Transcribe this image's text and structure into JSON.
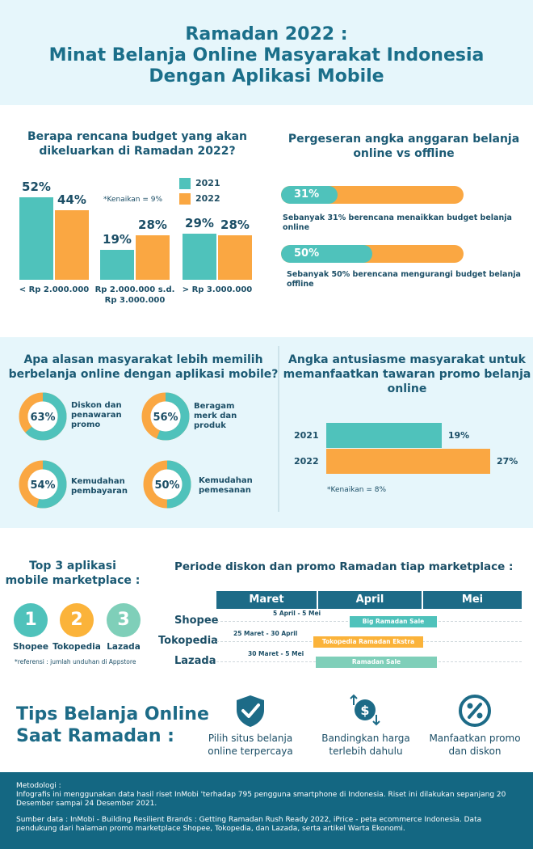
{
  "title": {
    "line1": "Ramadan 2022 :",
    "line2": "Minat Belanja Online Masyarakat Indonesia",
    "line3": "Dengan Aplikasi Mobile"
  },
  "colors": {
    "y2021": "#4fc2bb",
    "y2022": "#faa742",
    "dark": "#1d6b87",
    "light_band": "#e6f6fb"
  },
  "budget": {
    "title_line1": "Berapa rencana budget yang akan",
    "title_line2": "dikeluarkan di Ramadan 2022?",
    "note": "*Kenaikan = 9%",
    "legend": [
      "2021",
      "2022"
    ],
    "chart_data": {
      "type": "bar",
      "categories": [
        "< Rp 2.000.000",
        "Rp 2.000.000 s.d. Rp 3.000.000",
        "> Rp 3.000.000"
      ],
      "category_lines": [
        [
          "< Rp 2.000.000"
        ],
        [
          "Rp 2.000.000 s.d.",
          "Rp 3.000.000"
        ],
        [
          "> Rp 3.000.000"
        ]
      ],
      "series": [
        {
          "name": "2021",
          "values": [
            52,
            19,
            29
          ],
          "labels": [
            "52%",
            "19%",
            "29%"
          ]
        },
        {
          "name": "2022",
          "values": [
            44,
            28,
            28
          ],
          "labels": [
            "44%",
            "28%",
            "28%"
          ]
        }
      ],
      "ylim": [
        0,
        60
      ]
    }
  },
  "shift": {
    "title_line1": "Pergeseran angka anggaran belanja",
    "title_line2": "online vs offline",
    "items": [
      {
        "pct": 31,
        "label": "31%",
        "text_line1": "Sebanyak 31% berencana menaikkan budget belanja",
        "text_line2": "online"
      },
      {
        "pct": 50,
        "label": "50%",
        "text_line1": "Sebanyak 50% berencana mengurangi budget belanja",
        "text_line2": "offline"
      }
    ]
  },
  "reasons": {
    "title_line1": "Apa alasan masyarakat lebih memilih",
    "title_line2": "berbelanja online dengan aplikasi mobile?",
    "items": [
      {
        "pct": 63,
        "label": "63%",
        "lines": [
          "Diskon dan",
          "penawaran",
          "promo"
        ]
      },
      {
        "pct": 56,
        "label": "56%",
        "lines": [
          "Beragam",
          "merk dan",
          "produk"
        ]
      },
      {
        "pct": 54,
        "label": "54%",
        "lines": [
          "Kemudahan",
          "pembayaran"
        ]
      },
      {
        "pct": 50,
        "label": "50%",
        "lines": [
          "Kemudahan",
          "pemesanan"
        ]
      }
    ]
  },
  "promo_enthusiasm": {
    "title_line1": "Angka antusiasme masyarakat untuk",
    "title_line2": "memanfaatkan tawaran promo belanja",
    "title_line3": "online",
    "note": "*Kenaikan = 8%",
    "chart_data": {
      "type": "bar",
      "orientation": "horizontal",
      "categories": [
        "2021",
        "2022"
      ],
      "values": [
        19,
        27
      ],
      "labels": [
        "19%",
        "27%"
      ],
      "xlim": [
        0,
        27
      ]
    }
  },
  "top_apps": {
    "title_line1": "Top 3 aplikasi",
    "title_line2": "mobile marketplace :",
    "apps": [
      {
        "rank": "1",
        "name": "Shopee",
        "color": "#4fc2bb"
      },
      {
        "rank": "2",
        "name": "Tokopedia",
        "color": "#fbb33a"
      },
      {
        "rank": "3",
        "name": "Lazada",
        "color": "#7fcfb9"
      }
    ],
    "reference": "*referensi : jumlah unduhan di Appstore"
  },
  "periods": {
    "title": "Periode diskon dan promo Ramadan tiap marketplace :",
    "months": [
      "Maret",
      "April",
      "Mei"
    ],
    "rows": [
      {
        "marketplace": "Shopee",
        "range": "5 April - 5 Mei",
        "promo": "Big Ramadan Sale",
        "color": "#4fc2bb"
      },
      {
        "marketplace": "Tokopedia",
        "range": "25 Maret - 30 April",
        "promo": "Tokopedia Ramadan Ekstra",
        "color": "#fbb33a"
      },
      {
        "marketplace": "Lazada",
        "range": "30 Maret - 5 Mei",
        "promo": "Ramadan Sale",
        "color": "#7fcfb9"
      }
    ]
  },
  "tips": {
    "title_line1": "Tips Belanja Online",
    "title_line2": "Saat Ramadan :",
    "items": [
      {
        "icon": "shield-check-icon",
        "lines": [
          "Pilih situs belanja",
          "online terpercaya"
        ]
      },
      {
        "icon": "compare-price-icon",
        "lines": [
          "Bandingkan harga",
          "terlebih dahulu"
        ]
      },
      {
        "icon": "percent-icon",
        "lines": [
          "Manfaatkan promo",
          "dan diskon"
        ]
      }
    ]
  },
  "footer": {
    "method_title": "Metodologi :",
    "method_text": "Infografis ini menggunakan data hasil riset InMobi 'terhadap 795 pengguna smartphone di Indonesia. Riset ini dilakukan sepanjang 20 Desember sampai 24 Desember 2021.",
    "source_text": "Sumber data : InMobi - Building Resilient Brands : Getting Ramadan Rush Ready 2022, iPrice - peta ecommerce Indonesia. Data pendukung dari halaman promo marketplace Shopee, Tokopedia, dan Lazada, serta artikel Warta Ekonomi."
  }
}
